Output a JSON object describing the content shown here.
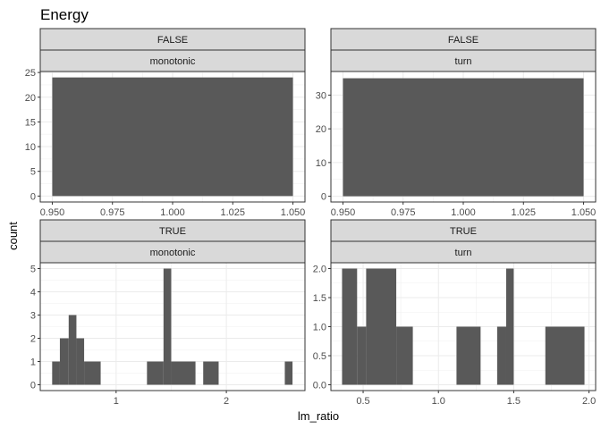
{
  "chart_data": {
    "type": "bar",
    "title": "Energy",
    "xlabel": "lm_ratio",
    "ylabel": "count",
    "grid": true,
    "bar_color": "#595959",
    "strip_fill": "#d9d9d9",
    "panels": [
      {
        "strips": [
          "FALSE",
          "monotonic"
        ],
        "xlim": [
          0.945,
          1.055
        ],
        "ylim": [
          -1.2,
          25.2
        ],
        "xticks": [
          0.95,
          0.975,
          1.0,
          1.025,
          1.05
        ],
        "xtick_labels": [
          "0.950",
          "0.975",
          "1.000",
          "1.025",
          "1.050"
        ],
        "yticks": [
          0,
          5,
          10,
          15,
          20,
          25
        ],
        "ytick_labels": [
          "0",
          "5",
          "10",
          "15",
          "20",
          "25"
        ],
        "bars": [
          {
            "x0": 0.95,
            "x1": 1.05,
            "count": 24
          }
        ]
      },
      {
        "strips": [
          "FALSE",
          "turn"
        ],
        "xlim": [
          0.945,
          1.055
        ],
        "ylim": [
          -1.7,
          37.0
        ],
        "xticks": [
          0.95,
          0.975,
          1.0,
          1.025,
          1.05
        ],
        "xtick_labels": [
          "0.950",
          "0.975",
          "1.000",
          "1.025",
          "1.050"
        ],
        "yticks": [
          0,
          10,
          20,
          30
        ],
        "ytick_labels": [
          "0",
          "10",
          "20",
          "30"
        ],
        "bars": [
          {
            "x0": 0.95,
            "x1": 1.05,
            "count": 35
          }
        ]
      },
      {
        "strips": [
          "TRUE",
          "monotonic"
        ],
        "xlim": [
          0.312,
          2.713
        ],
        "ylim": [
          -0.25,
          5.25
        ],
        "xticks": [
          1,
          2
        ],
        "xtick_labels": [
          "1",
          "2"
        ],
        "yticks": [
          0,
          1,
          2,
          3,
          4,
          5
        ],
        "ytick_labels": [
          "0",
          "1",
          "2",
          "3",
          "4",
          "5"
        ],
        "bars": [
          {
            "x0": 0.42,
            "x1": 0.49,
            "count": 1
          },
          {
            "x0": 0.49,
            "x1": 0.57,
            "count": 2
          },
          {
            "x0": 0.57,
            "x1": 0.64,
            "count": 3
          },
          {
            "x0": 0.64,
            "x1": 0.71,
            "count": 2
          },
          {
            "x0": 0.71,
            "x1": 0.86,
            "count": 1
          },
          {
            "x0": 1.28,
            "x1": 1.43,
            "count": 1
          },
          {
            "x0": 1.43,
            "x1": 1.5,
            "count": 5
          },
          {
            "x0": 1.5,
            "x1": 1.72,
            "count": 1
          },
          {
            "x0": 1.79,
            "x1": 1.93,
            "count": 1
          },
          {
            "x0": 2.53,
            "x1": 2.6,
            "count": 1
          }
        ]
      },
      {
        "strips": [
          "TRUE",
          "turn"
        ],
        "xlim": [
          0.286,
          2.044
        ],
        "ylim": [
          -0.1,
          2.1
        ],
        "xticks": [
          0.5,
          1.0,
          1.5,
          2.0
        ],
        "xtick_labels": [
          "0.5",
          "1.0",
          "1.5",
          "2.0"
        ],
        "yticks": [
          0,
          0.5,
          1.0,
          1.5,
          2.0
        ],
        "ytick_labels": [
          "0.0",
          "0.5",
          "1.0",
          "1.5",
          "2.0"
        ],
        "bars": [
          {
            "x0": 0.36,
            "x1": 0.46,
            "count": 2
          },
          {
            "x0": 0.46,
            "x1": 0.52,
            "count": 1
          },
          {
            "x0": 0.52,
            "x1": 0.72,
            "count": 2
          },
          {
            "x0": 0.72,
            "x1": 0.83,
            "count": 1
          },
          {
            "x0": 1.12,
            "x1": 1.28,
            "count": 1
          },
          {
            "x0": 1.39,
            "x1": 1.45,
            "count": 1
          },
          {
            "x0": 1.45,
            "x1": 1.5,
            "count": 2
          },
          {
            "x0": 1.71,
            "x1": 1.97,
            "count": 1
          }
        ]
      }
    ]
  }
}
